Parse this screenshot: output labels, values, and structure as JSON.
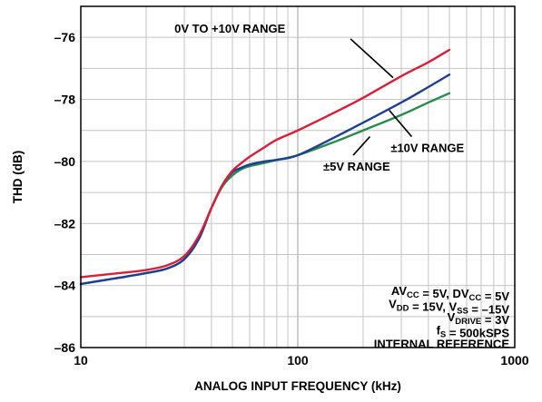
{
  "chart_data": {
    "type": "line",
    "title": "",
    "xlabel": "ANALOG INPUT FREQUENCY (kHz)",
    "ylabel": "THD (dB)",
    "xscale": "log",
    "xlim": [
      10,
      1000
    ],
    "ylim": [
      -86,
      -75
    ],
    "x_ticks": [
      10,
      100,
      1000
    ],
    "x_tick_labels": [
      "10",
      "100",
      "1000"
    ],
    "y_ticks": [
      -86,
      -84,
      -82,
      -80,
      -78,
      -76
    ],
    "y_tick_labels": [
      "–86",
      "–84",
      "–82",
      "–80",
      "–78",
      "–76"
    ],
    "grid": true,
    "series": [
      {
        "name": "0V TO +10V RANGE",
        "color": "#d6203a",
        "x": [
          10,
          15,
          20,
          25,
          30,
          35,
          40,
          45,
          50,
          55,
          60,
          70,
          80,
          100,
          150,
          200,
          300,
          400,
          500
        ],
        "y": [
          -83.73,
          -83.6,
          -83.5,
          -83.35,
          -83.05,
          -82.4,
          -81.5,
          -80.75,
          -80.3,
          -80.05,
          -79.85,
          -79.55,
          -79.3,
          -79.0,
          -78.4,
          -77.95,
          -77.25,
          -76.8,
          -76.4
        ]
      },
      {
        "name": "±10V RANGE",
        "color": "#1f3f8f",
        "x": [
          10,
          15,
          20,
          25,
          30,
          35,
          40,
          45,
          50,
          55,
          60,
          70,
          80,
          100,
          150,
          200,
          300,
          400,
          500
        ],
        "y": [
          -83.95,
          -83.75,
          -83.6,
          -83.45,
          -83.15,
          -82.5,
          -81.5,
          -80.75,
          -80.35,
          -80.2,
          -80.1,
          -80.0,
          -79.95,
          -79.8,
          -79.2,
          -78.75,
          -78.1,
          -77.6,
          -77.2
        ]
      },
      {
        "name": "±5V RANGE",
        "color": "#2a8a4e",
        "x": [
          10,
          15,
          20,
          25,
          30,
          35,
          40,
          45,
          50,
          55,
          60,
          70,
          80,
          100,
          150,
          200,
          300,
          400,
          500
        ],
        "y": [
          -83.95,
          -83.75,
          -83.6,
          -83.45,
          -83.15,
          -82.5,
          -81.5,
          -80.8,
          -80.45,
          -80.25,
          -80.15,
          -80.05,
          -79.95,
          -79.8,
          -79.35,
          -79.0,
          -78.5,
          -78.1,
          -77.8
        ]
      }
    ],
    "annotations": [
      {
        "text": "0V TO +10V RANGE",
        "series": 0
      },
      {
        "text": "±10V RANGE",
        "series": 1
      },
      {
        "text": "±5V RANGE",
        "series": 2
      }
    ],
    "conditions": [
      "AV_CC = 5V, DV_CC = 5V",
      "V_DD = 15V, V_SS = –15V",
      "V_DRIVE = 3V",
      "f_S = 500kSPS",
      "INTERNAL REFERENCE"
    ]
  }
}
